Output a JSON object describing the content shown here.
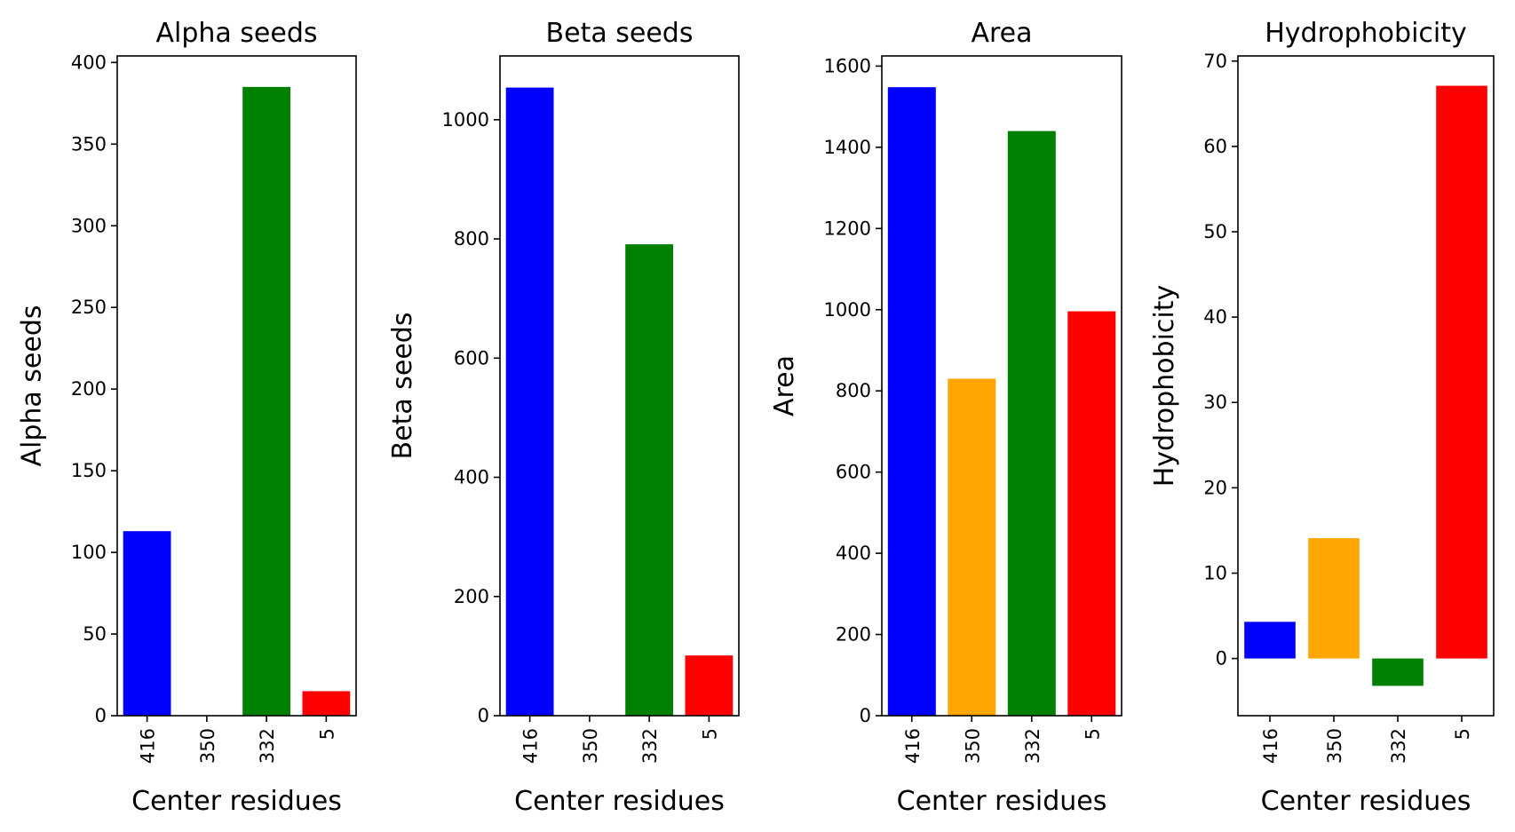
{
  "chart_data": [
    {
      "type": "bar",
      "title": "Alpha seeds",
      "xlabel": "Center residues",
      "ylabel": "Alpha seeds",
      "categories": [
        "416",
        "350",
        "332",
        "5"
      ],
      "values": [
        113,
        0,
        385,
        15
      ],
      "colors": [
        "#0000ff",
        "#ffa500",
        "#008000",
        "#ff0000"
      ],
      "ylim": [
        0,
        404
      ],
      "yticks": [
        "0",
        "50",
        "100",
        "150",
        "200",
        "250",
        "300",
        "350",
        "400"
      ]
    },
    {
      "type": "bar",
      "title": "Beta seeds",
      "xlabel": "Center residues",
      "ylabel": "Beta seeds",
      "categories": [
        "416",
        "350",
        "332",
        "5"
      ],
      "values": [
        1054,
        0,
        791,
        101
      ],
      "colors": [
        "#0000ff",
        "#ffa500",
        "#008000",
        "#ff0000"
      ],
      "ylim": [
        0,
        1107
      ],
      "yticks": [
        "0",
        "200",
        "400",
        "600",
        "800",
        "1000"
      ]
    },
    {
      "type": "bar",
      "title": "Area",
      "xlabel": "Center residues",
      "ylabel": "Area",
      "categories": [
        "416",
        "350",
        "332",
        "5"
      ],
      "values": [
        1548,
        830,
        1440,
        996
      ],
      "colors": [
        "#0000ff",
        "#ffa500",
        "#008000",
        "#ff0000"
      ],
      "ylim": [
        0,
        1625
      ],
      "yticks": [
        "0",
        "200",
        "400",
        "600",
        "800",
        "1000",
        "1200",
        "1400",
        "1600"
      ]
    },
    {
      "type": "bar",
      "title": "Hydrophobicity",
      "xlabel": "Center residues",
      "ylabel": "Hydrophobicity",
      "categories": [
        "416",
        "350",
        "332",
        "5"
      ],
      "values": [
        4.3,
        14.1,
        -3.2,
        67.1
      ],
      "colors": [
        "#0000ff",
        "#ffa500",
        "#008000",
        "#ff0000"
      ],
      "ylim": [
        -6.7,
        70.6
      ],
      "yticks": [
        "0",
        "10",
        "20",
        "30",
        "40",
        "50",
        "60",
        "70"
      ]
    }
  ]
}
